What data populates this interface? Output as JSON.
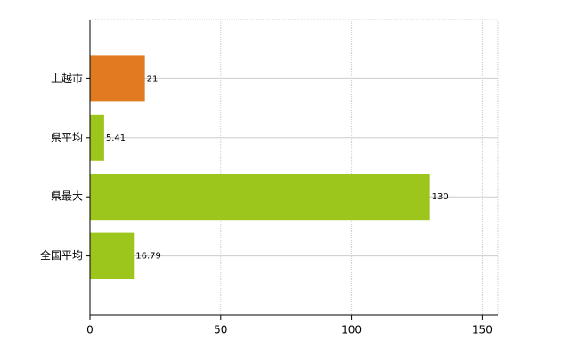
{
  "chart_data": {
    "type": "bar",
    "orientation": "horizontal",
    "categories": [
      "上越市",
      "県平均",
      "県最大",
      "全国平均"
    ],
    "values": [
      21,
      5.41,
      130,
      16.79
    ],
    "colors": [
      "#e07b22",
      "#9dc61c",
      "#9dc61c",
      "#9dc61c"
    ],
    "xlim": [
      0,
      156
    ],
    "xticks": [
      0,
      50,
      100,
      150
    ],
    "grid": true,
    "data_labels": true
  }
}
